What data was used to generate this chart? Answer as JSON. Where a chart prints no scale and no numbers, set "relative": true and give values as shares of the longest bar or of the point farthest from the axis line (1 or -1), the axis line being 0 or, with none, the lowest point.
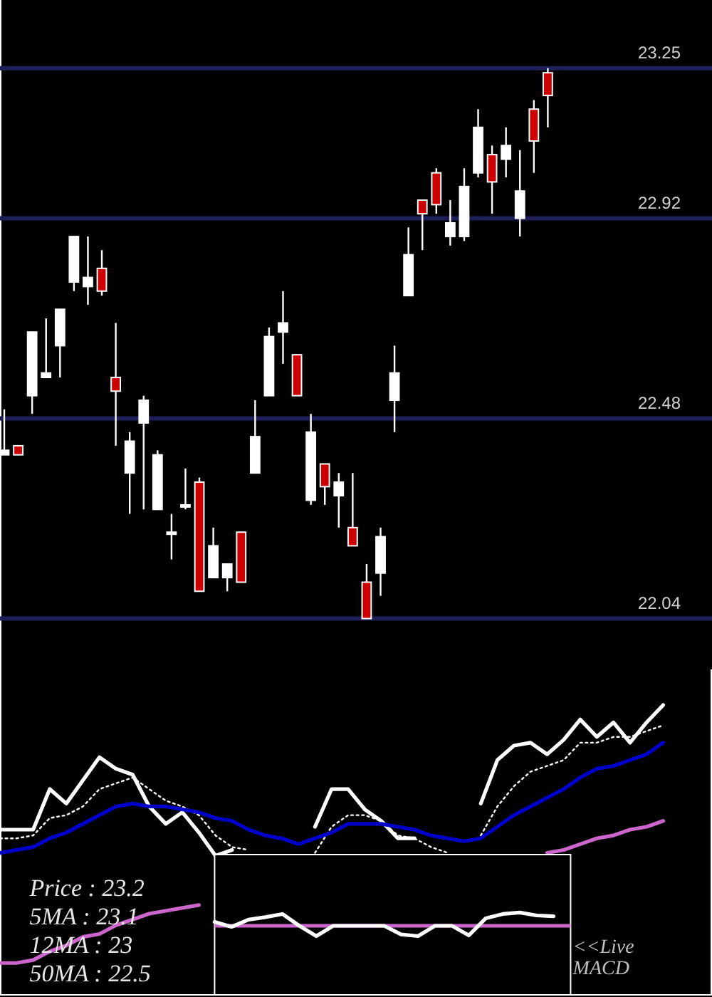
{
  "chart_data": [
    {
      "type": "candlestick",
      "categories": [
        null,
        null,
        null,
        null,
        null,
        null,
        null,
        null,
        null,
        null,
        null,
        null,
        null,
        null,
        null,
        null,
        null,
        null,
        null,
        null,
        null,
        null,
        null,
        null,
        null,
        null,
        null,
        null,
        null,
        null,
        null,
        null,
        null,
        null,
        null,
        null,
        null,
        null,
        null,
        null
      ],
      "ohlc": [
        [
          22.4,
          22.5,
          22.4,
          22.41
        ],
        [
          22.42,
          22.42,
          22.4,
          22.4
        ],
        [
          22.53,
          22.67,
          22.49,
          22.67
        ],
        [
          22.57,
          22.7,
          22.57,
          22.58
        ],
        [
          22.64,
          22.72,
          22.57,
          22.72
        ],
        [
          22.78,
          22.88,
          22.76,
          22.88
        ],
        [
          22.77,
          22.88,
          22.73,
          22.79
        ],
        [
          22.81,
          22.85,
          22.75,
          22.76
        ],
        [
          22.57,
          22.69,
          22.42,
          22.54
        ],
        [
          22.36,
          22.45,
          22.27,
          22.43
        ],
        [
          22.47,
          22.53,
          22.28,
          22.52
        ],
        [
          22.28,
          22.41,
          22.28,
          22.4
        ],
        [
          22.23,
          22.27,
          22.17,
          22.23
        ],
        [
          22.29,
          22.37,
          22.28,
          22.29
        ],
        [
          22.34,
          22.35,
          22.1,
          22.1
        ],
        [
          22.13,
          22.24,
          22.13,
          22.2
        ],
        [
          22.13,
          22.16,
          22.1,
          22.16
        ],
        [
          22.23,
          22.23,
          22.12,
          22.12
        ],
        [
          22.36,
          22.52,
          22.36,
          22.44
        ],
        [
          22.53,
          22.68,
          22.53,
          22.66
        ],
        [
          22.67,
          22.76,
          22.6,
          22.69
        ],
        [
          22.62,
          22.62,
          22.53,
          22.53
        ],
        [
          22.3,
          22.49,
          22.29,
          22.45
        ],
        [
          22.38,
          22.38,
          22.29,
          22.33
        ],
        [
          22.31,
          22.36,
          22.24,
          22.34
        ],
        [
          22.24,
          22.36,
          22.2,
          22.2
        ],
        [
          22.12,
          22.16,
          22.04,
          22.04
        ],
        [
          22.14,
          22.24,
          22.09,
          22.22
        ],
        [
          22.52,
          22.64,
          22.45,
          22.58
        ],
        [
          22.75,
          22.9,
          22.75,
          22.84
        ],
        [
          22.96,
          22.96,
          22.85,
          22.93
        ],
        [
          23.02,
          23.03,
          22.93,
          22.95
        ],
        [
          22.88,
          22.96,
          22.86,
          22.91
        ],
        [
          22.88,
          23.03,
          22.87,
          22.99
        ],
        [
          23.02,
          23.16,
          23.01,
          23.12
        ],
        [
          23.06,
          23.08,
          22.93,
          23.0
        ],
        [
          23.05,
          23.12,
          23.01,
          23.08
        ],
        [
          22.92,
          23.07,
          22.88,
          22.98
        ],
        [
          23.16,
          23.18,
          23.02,
          23.09
        ],
        [
          23.24,
          23.25,
          23.12,
          23.19
        ]
      ],
      "colors": [
        "#ffffff",
        "#cc0000",
        "#ffffff",
        "#ffffff",
        "#ffffff",
        "#ffffff",
        "#ffffff",
        "#cc0000",
        "#cc0000",
        "#ffffff",
        "#ffffff",
        "#ffffff",
        "#ffffff",
        "#ffffff",
        "#cc0000",
        "#ffffff",
        "#ffffff",
        "#cc0000",
        "#ffffff",
        "#ffffff",
        "#ffffff",
        "#cc0000",
        "#ffffff",
        "#cc0000",
        "#ffffff",
        "#cc0000",
        "#cc0000",
        "#ffffff",
        "#ffffff",
        "#ffffff",
        "#cc0000",
        "#cc0000",
        "#ffffff",
        "#ffffff",
        "#ffffff",
        "#cc0000",
        "#ffffff",
        "#ffffff",
        "#cc0000",
        "#cc0000"
      ],
      "ylim": [
        22.04,
        23.25
      ],
      "yticks": [
        22.04,
        22.48,
        22.92,
        23.25
      ],
      "grid": "y",
      "tick_labels": "y"
    },
    {
      "type": "line",
      "relative": true,
      "categories": [
        null,
        null,
        null,
        null,
        null,
        null,
        null,
        null,
        null,
        null,
        null,
        null,
        null,
        null,
        null,
        null,
        null,
        null,
        null,
        null,
        null,
        null,
        null,
        null,
        null,
        null,
        null,
        null,
        null,
        null,
        null,
        null,
        null,
        null,
        null,
        null,
        null,
        null,
        null,
        null,
        null
      ],
      "series": [
        {
          "color": "#ffffff",
          "values": [
            0.57,
            0.57,
            0.57,
            0.71,
            0.66,
            0.74,
            0.82,
            0.78,
            0.76,
            0.65,
            0.59,
            0.63,
            0.56,
            0.48,
            0.5,
            null,
            null,
            null,
            null,
            0.58,
            0.71,
            0.71,
            0.64,
            0.6,
            0.54,
            0.54,
            null,
            null,
            null,
            0.66,
            0.81,
            0.86,
            0.87,
            0.83,
            0.88,
            0.95,
            0.89,
            0.94,
            0.87,
            0.94,
            1
          ]
        },
        {
          "color": "#ffffff",
          "line_style": "dotted",
          "values": [
            0.54,
            0.54,
            0.55,
            0.61,
            0.62,
            0.65,
            0.71,
            0.73,
            0.75,
            0.71,
            0.67,
            0.65,
            0.62,
            0.55,
            0.51,
            0.5,
            null,
            null,
            null,
            0.49,
            0.58,
            0.62,
            0.62,
            0.6,
            0.55,
            0.54,
            0.51,
            0.49,
            null,
            0.55,
            0.65,
            0.72,
            0.77,
            0.79,
            0.81,
            0.87,
            0.87,
            0.89,
            0.89,
            0.91,
            0.93
          ]
        },
        {
          "color": "#0000cc",
          "values": [
            0.49,
            0.5,
            0.51,
            0.54,
            0.56,
            0.59,
            0.62,
            0.65,
            0.66,
            0.65,
            0.65,
            0.64,
            0.63,
            0.61,
            0.6,
            0.57,
            0.55,
            0.54,
            0.52,
            0.54,
            0.56,
            0.59,
            0.59,
            0.59,
            0.58,
            0.57,
            0.55,
            0.54,
            0.53,
            0.54,
            0.58,
            0.62,
            0.65,
            0.68,
            0.71,
            0.75,
            0.78,
            0.79,
            0.81,
            0.83,
            0.87
          ]
        },
        {
          "color": "#cc66cc",
          "values": [
            0.11,
            0.11,
            0.12,
            0.15,
            0.17,
            0.2,
            0.21,
            0.24,
            0.26,
            0.28,
            0.29,
            0.3,
            0.31,
            null,
            null,
            null,
            null,
            null,
            null,
            null,
            null,
            null,
            null,
            null,
            null,
            null,
            null,
            null,
            null,
            null,
            null,
            null,
            null,
            0.49,
            0.5,
            0.52,
            0.54,
            0.55,
            0.57,
            0.58,
            0.6
          ]
        }
      ],
      "annotations": [
        "Price : 23.2",
        "5MA : 23.1",
        "12MA : 23",
        "50MA : 22.5"
      ]
    },
    {
      "type": "line",
      "relative": true,
      "categories": [
        null,
        null,
        null,
        null,
        null,
        null,
        null,
        null,
        null,
        null,
        null,
        null,
        null,
        null,
        null,
        null,
        null,
        null,
        null,
        null,
        null,
        null
      ],
      "series": [
        {
          "color": "#ffffff",
          "values": [
            0.29,
            -0.08,
            0.46,
            0.65,
            0.89,
            0,
            -0.78,
            0,
            0,
            0,
            0,
            -0.65,
            -0.78,
            0,
            0,
            -0.72,
            0.57,
            0.89,
            1,
            0.78,
            0.72,
            null
          ]
        }
      ],
      "ref_lines": [
        {
          "axis": "y",
          "value": 0,
          "color": "#cc66cc"
        }
      ],
      "annotations": [
        "<<Live MACD"
      ]
    }
  ]
}
